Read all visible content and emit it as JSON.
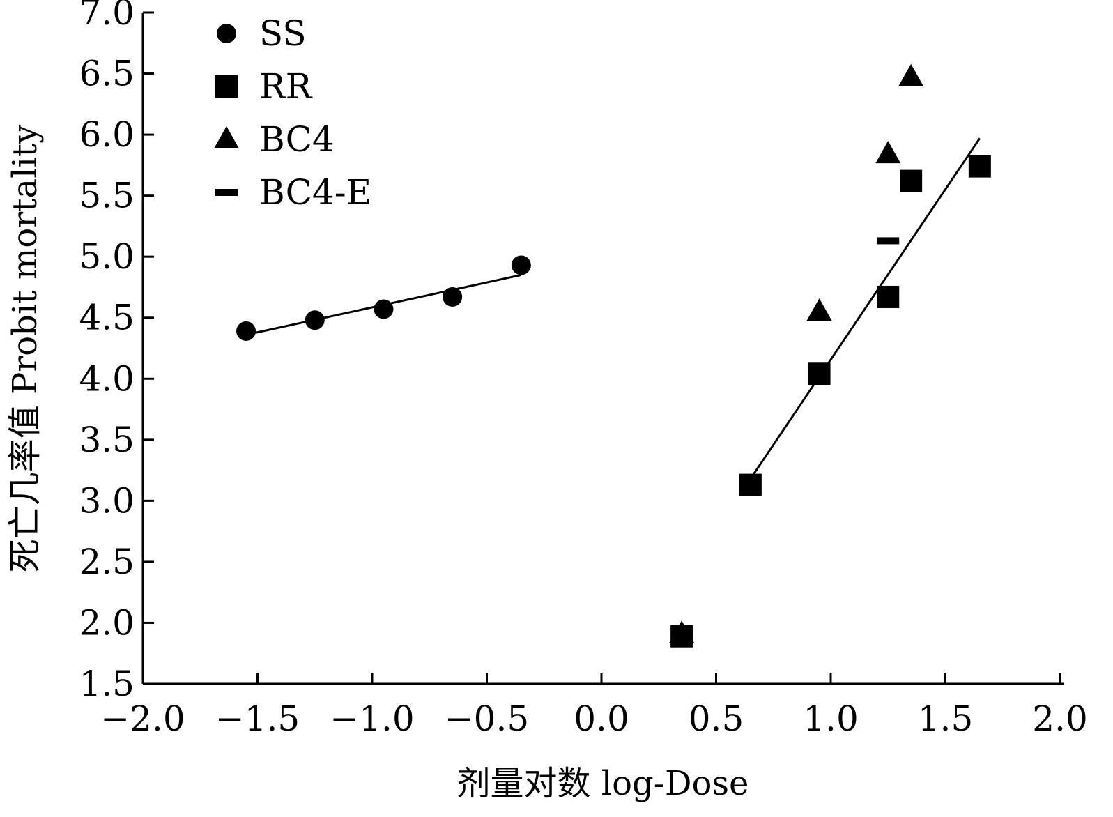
{
  "chart_data": {
    "type": "scatter",
    "title": "",
    "xlabel": "剂量对数 log-Dose",
    "ylabel": "死亡几率值 Probit mortality",
    "xlim": [
      -2.0,
      2.0
    ],
    "ylim": [
      1.5,
      7.0
    ],
    "x_ticks": [
      -2.0,
      -1.5,
      -1.0,
      -0.5,
      0.0,
      0.5,
      1.0,
      1.5,
      2.0
    ],
    "x_tick_labels": [
      "−2.0",
      "−1.5",
      "−1.0",
      "−0.5",
      "0.0",
      "0.5",
      "1.0",
      "1.5",
      "2.0"
    ],
    "y_ticks": [
      1.5,
      2.0,
      2.5,
      3.0,
      3.5,
      4.0,
      4.5,
      5.0,
      5.5,
      6.0,
      6.5,
      7.0
    ],
    "y_tick_labels": [
      "1.5",
      "2.0",
      "2.5",
      "3.0",
      "3.5",
      "4.0",
      "4.5",
      "5.0",
      "5.5",
      "6.0",
      "6.5",
      "7.0"
    ],
    "legend_position": "top-left",
    "series": [
      {
        "name": "SS",
        "marker": "circle",
        "x": [
          -1.55,
          -1.25,
          -0.95,
          -0.65,
          -0.35
        ],
        "y": [
          4.39,
          4.48,
          4.57,
          4.67,
          4.93
        ]
      },
      {
        "name": "RR",
        "marker": "square",
        "x": [
          0.35,
          0.65,
          0.95,
          1.25,
          1.35,
          1.65
        ],
        "y": [
          1.89,
          3.13,
          4.04,
          4.67,
          5.62,
          5.74
        ]
      },
      {
        "name": "BC4",
        "marker": "triangle",
        "x": [
          0.35,
          0.95,
          1.25,
          1.35
        ],
        "y": [
          1.91,
          4.55,
          5.84,
          6.47
        ]
      },
      {
        "name": "BC4-E",
        "marker": "dash",
        "x": [
          1.25
        ],
        "y": [
          5.13
        ]
      }
    ],
    "fit_lines": [
      {
        "series": "SS",
        "x": [
          -1.55,
          -0.35
        ],
        "y": [
          4.36,
          4.85
        ]
      },
      {
        "series": "RR",
        "x": [
          0.65,
          1.65
        ],
        "y": [
          3.18,
          5.97
        ]
      }
    ]
  }
}
